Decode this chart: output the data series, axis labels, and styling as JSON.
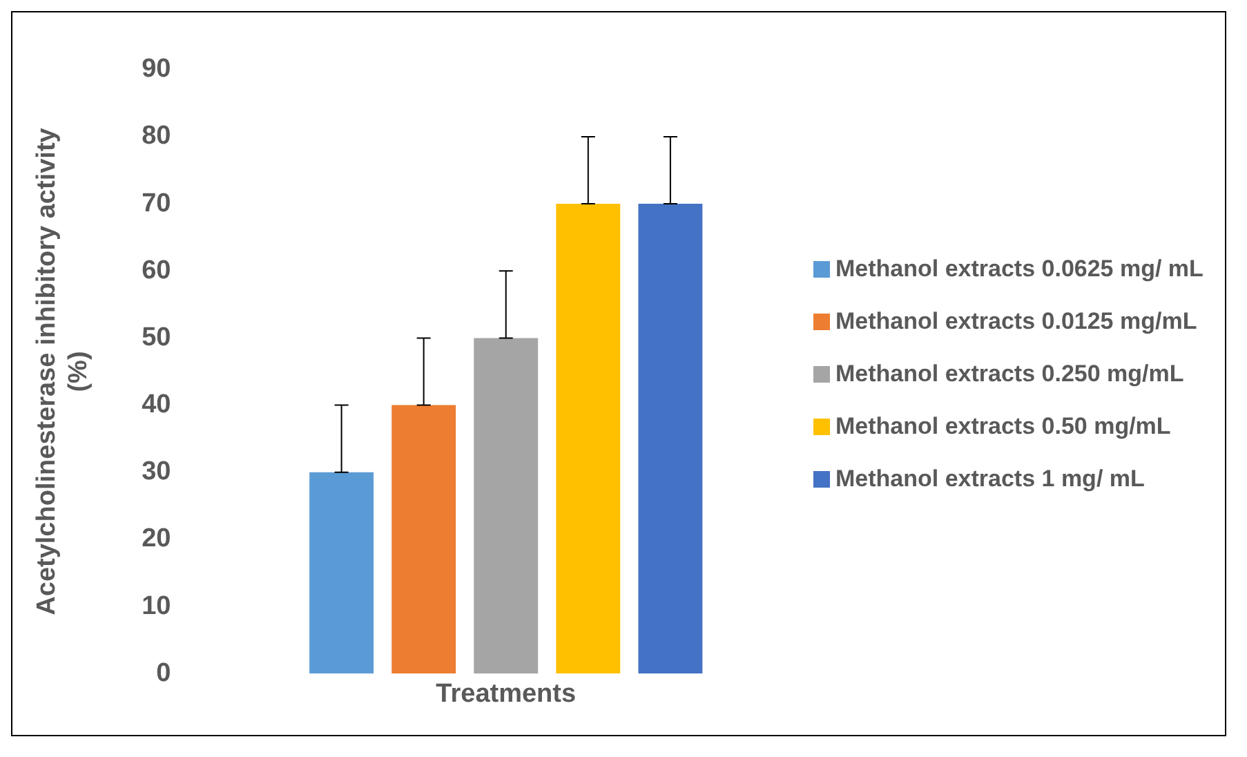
{
  "chart_data": {
    "type": "bar",
    "ylabel": "Acetylcholinesterase inhibitory activity (%)",
    "xlabel": "Treatments",
    "categories": [
      null
    ],
    "series": [
      {
        "name": "Methanol extracts 0.0625 mg/ mL",
        "color": "#5b9bd5",
        "values": [
          30
        ],
        "errors": [
          [
            30,
            40
          ]
        ]
      },
      {
        "name": "Methanol extracts 0.0125 mg/mL",
        "color": "#ed7d31",
        "values": [
          40
        ],
        "errors": [
          [
            40,
            50
          ]
        ]
      },
      {
        "name": "Methanol extracts 0.250 mg/mL",
        "color": "#a5a5a5",
        "values": [
          50
        ],
        "errors": [
          [
            50,
            60
          ]
        ]
      },
      {
        "name": "Methanol extracts 0.50 mg/mL",
        "color": "#ffc000",
        "values": [
          70
        ],
        "errors": [
          [
            70,
            80
          ]
        ]
      },
      {
        "name": "Methanol extracts 1 mg/ mL",
        "color": "#4472c4",
        "values": [
          70
        ],
        "errors": [
          [
            70,
            80
          ]
        ]
      }
    ],
    "ylim": [
      0,
      90
    ],
    "yticks": [
      0,
      10,
      20,
      30,
      40,
      50,
      60,
      70,
      80,
      90
    ],
    "grid": false,
    "legend": "right"
  }
}
